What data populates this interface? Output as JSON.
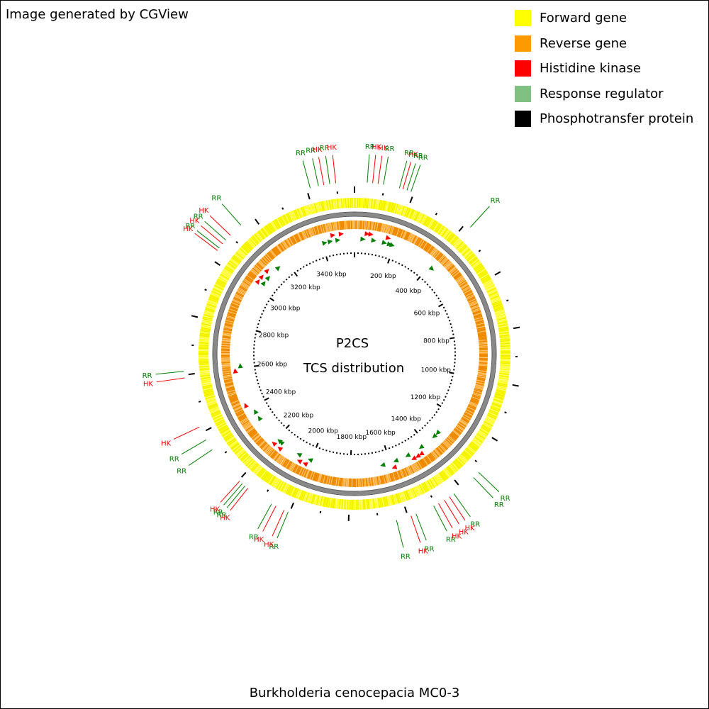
{
  "header": {
    "credit": "Image generated by CGView"
  },
  "legend": [
    {
      "label": "Forward gene",
      "color": "#ffff00"
    },
    {
      "label": "Reverse gene",
      "color": "#ff9900"
    },
    {
      "label": "Histidine kinase",
      "color": "#ff0000"
    },
    {
      "label": "Response regulator",
      "color": "#80c080"
    },
    {
      "label": "Phosphotransfer protein",
      "color": "#000000"
    }
  ],
  "map": {
    "title_line1": "P2CS",
    "title_line2": "TCS distribution",
    "genome_kbp": 3560,
    "tick_labels": [
      "200 kbp",
      "400 kbp",
      "600 kbp",
      "800 kbp",
      "1000 kbp",
      "1200 kbp",
      "1400 kbp",
      "1600 kbp",
      "1800 kbp",
      "2000 kbp",
      "2200 kbp",
      "2400 kbp",
      "2600 kbp",
      "2800 kbp",
      "3000 kbp",
      "3200 kbp",
      "3400 kbp"
    ],
    "colors": {
      "forward": "#ffff00",
      "reverse": "#ff9900",
      "hk": "#ff0000",
      "rr": "#008000",
      "backbone": "#808080",
      "tick": "#000000"
    },
    "features": [
      {
        "label": "RR",
        "type": "rr",
        "pos_kbp": 3412
      },
      {
        "label": "RR",
        "type": "rr",
        "pos_kbp": 3440
      },
      {
        "label": "HK",
        "type": "hk",
        "pos_kbp": 3458
      },
      {
        "label": "RR",
        "type": "rr",
        "pos_kbp": 3478
      },
      {
        "label": "HK",
        "type": "hk",
        "pos_kbp": 3498
      },
      {
        "label": "RR",
        "type": "rr",
        "pos_kbp": 42
      },
      {
        "label": "HK",
        "type": "hk",
        "pos_kbp": 60
      },
      {
        "label": "HK",
        "type": "hk",
        "pos_kbp": 78
      },
      {
        "label": "RR",
        "type": "rr",
        "pos_kbp": 96
      },
      {
        "label": "RR",
        "type": "rr",
        "pos_kbp": 150
      },
      {
        "label": "HK",
        "type": "hk",
        "pos_kbp": 162
      },
      {
        "label": "RR",
        "type": "rr",
        "pos_kbp": 176
      },
      {
        "label": "RR",
        "type": "rr",
        "pos_kbp": 190
      },
      {
        "label": "RR",
        "type": "rr",
        "pos_kbp": 420
      },
      {
        "label": "RR",
        "type": "rr",
        "pos_kbp": 1322
      },
      {
        "label": "RR",
        "type": "rr",
        "pos_kbp": 1346
      },
      {
        "label": "RR",
        "type": "rr",
        "pos_kbp": 1430
      },
      {
        "label": "HK",
        "type": "hk",
        "pos_kbp": 1448
      },
      {
        "label": "HK",
        "type": "hk",
        "pos_kbp": 1468
      },
      {
        "label": "HK",
        "type": "hk",
        "pos_kbp": 1490
      },
      {
        "label": "RR",
        "type": "rr",
        "pos_kbp": 1508
      },
      {
        "label": "RR",
        "type": "rr",
        "pos_kbp": 1572
      },
      {
        "label": "HK",
        "type": "hk",
        "pos_kbp": 1590
      },
      {
        "label": "RR",
        "type": "rr",
        "pos_kbp": 1640
      },
      {
        "label": "RR",
        "type": "rr",
        "pos_kbp": 2005
      },
      {
        "label": "HK",
        "type": "hk",
        "pos_kbp": 2020
      },
      {
        "label": "HK",
        "type": "hk",
        "pos_kbp": 2050
      },
      {
        "label": "RR",
        "type": "rr",
        "pos_kbp": 2066
      },
      {
        "label": "HK",
        "type": "hk",
        "pos_kbp": 2160
      },
      {
        "label": "RR",
        "type": "rr",
        "pos_kbp": 2172
      },
      {
        "label": "RR",
        "type": "rr",
        "pos_kbp": 2184
      },
      {
        "label": "HK",
        "type": "hk",
        "pos_kbp": 2196
      },
      {
        "label": "RR",
        "type": "rr",
        "pos_kbp": 2334
      },
      {
        "label": "RR",
        "type": "rr",
        "pos_kbp": 2372
      },
      {
        "label": "HK",
        "type": "hk",
        "pos_kbp": 2420
      },
      {
        "label": "HK",
        "type": "hk",
        "pos_kbp": 2590
      },
      {
        "label": "RR",
        "type": "rr",
        "pos_kbp": 2612
      },
      {
        "label": "HK",
        "type": "hk",
        "pos_kbp": 3036
      },
      {
        "label": "RR",
        "type": "rr",
        "pos_kbp": 3046
      },
      {
        "label": "HK",
        "type": "hk",
        "pos_kbp": 3064
      },
      {
        "label": "RR",
        "type": "rr",
        "pos_kbp": 3080
      },
      {
        "label": "HK",
        "type": "hk",
        "pos_kbp": 3102
      },
      {
        "label": "RR",
        "type": "rr",
        "pos_kbp": 3150
      }
    ]
  },
  "footer": {
    "organism": "Burkholderia cenocepacia MC0-3"
  }
}
